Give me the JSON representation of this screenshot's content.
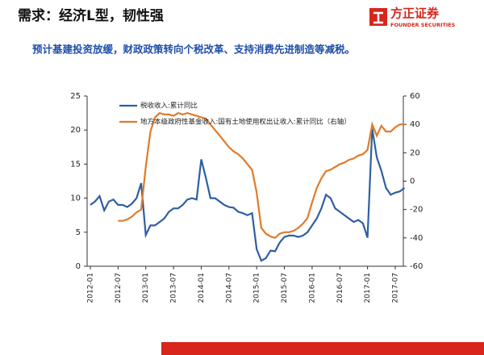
{
  "header": {
    "title": "需求：经济L型，韧性强",
    "logo_cn": "方正证券",
    "logo_en": "FOUNDER SECURITIES"
  },
  "subtitle": "预计基建投资放缓，财政政策转向个税改革、支持消费先进制造等减税。",
  "chart_data": {
    "type": "line",
    "categories": [
      "2012-01",
      null,
      null,
      null,
      null,
      null,
      "2012-07",
      null,
      null,
      null,
      null,
      null,
      "2013-01",
      null,
      null,
      null,
      null,
      null,
      "2013-07",
      null,
      null,
      null,
      null,
      null,
      "2014-01",
      null,
      null,
      null,
      null,
      null,
      "2014-07",
      null,
      null,
      null,
      null,
      null,
      "2015-01",
      null,
      null,
      null,
      null,
      null,
      "2015-07",
      null,
      null,
      null,
      null,
      null,
      "2016-01",
      null,
      null,
      null,
      null,
      null,
      "2016-07",
      null,
      null,
      null,
      null,
      null,
      "2017-01",
      null,
      null,
      null,
      null,
      null,
      "2017-07",
      null,
      null
    ],
    "series": [
      {
        "name": "税收收入:累计同比",
        "color": "#2e5fa3",
        "values": [
          9,
          9.5,
          10.3,
          8.2,
          9.5,
          9.8,
          9,
          9,
          8.7,
          9.2,
          10,
          12.2,
          4.6,
          6,
          6,
          6.5,
          7,
          8,
          8.5,
          8.5,
          9,
          9.8,
          10,
          9.8,
          15.7,
          13,
          10,
          10,
          9.5,
          9,
          8.7,
          8.6,
          8,
          7.8,
          7.5,
          7.8,
          2.5,
          0.8,
          1.2,
          2.3,
          2.2,
          3.5,
          4.3,
          4.5,
          4.5,
          4.3,
          4.5,
          5,
          6,
          7,
          8.5,
          10.5,
          10,
          8.5,
          8,
          7.5,
          7,
          6.5,
          6.8,
          6.3,
          4.2,
          20.2,
          16,
          14,
          11.5,
          10.5,
          10.8,
          11,
          11.5
        ]
      },
      {
        "name": "地方本级政府性基金收入:国有土地使用权出让收入:累计同比（右轴）",
        "color": "#e07b2a",
        "axis": "y2",
        "values": [
          null,
          null,
          null,
          null,
          null,
          null,
          -28,
          -28,
          -27,
          -25,
          -22,
          -20,
          10,
          35,
          45,
          48,
          47,
          47,
          46,
          48,
          47,
          48,
          47,
          46,
          45,
          44,
          40,
          36,
          32,
          28,
          24,
          21,
          19,
          16,
          12,
          8,
          -8,
          -33,
          -37,
          -39,
          -40,
          -37,
          -36,
          -36,
          -35,
          -33,
          -30,
          -26,
          -15,
          -5,
          2,
          7,
          8,
          10,
          12,
          13,
          15,
          16,
          18,
          19,
          22,
          40,
          32,
          39,
          35,
          35,
          38,
          40,
          40
        ]
      }
    ],
    "ylim": [
      0,
      25
    ],
    "yticks": [
      0,
      5,
      10,
      15,
      20,
      25
    ],
    "y2lim": [
      -60,
      60
    ],
    "y2ticks": [
      -60,
      -40,
      -20,
      0,
      20,
      40,
      60
    ]
  }
}
